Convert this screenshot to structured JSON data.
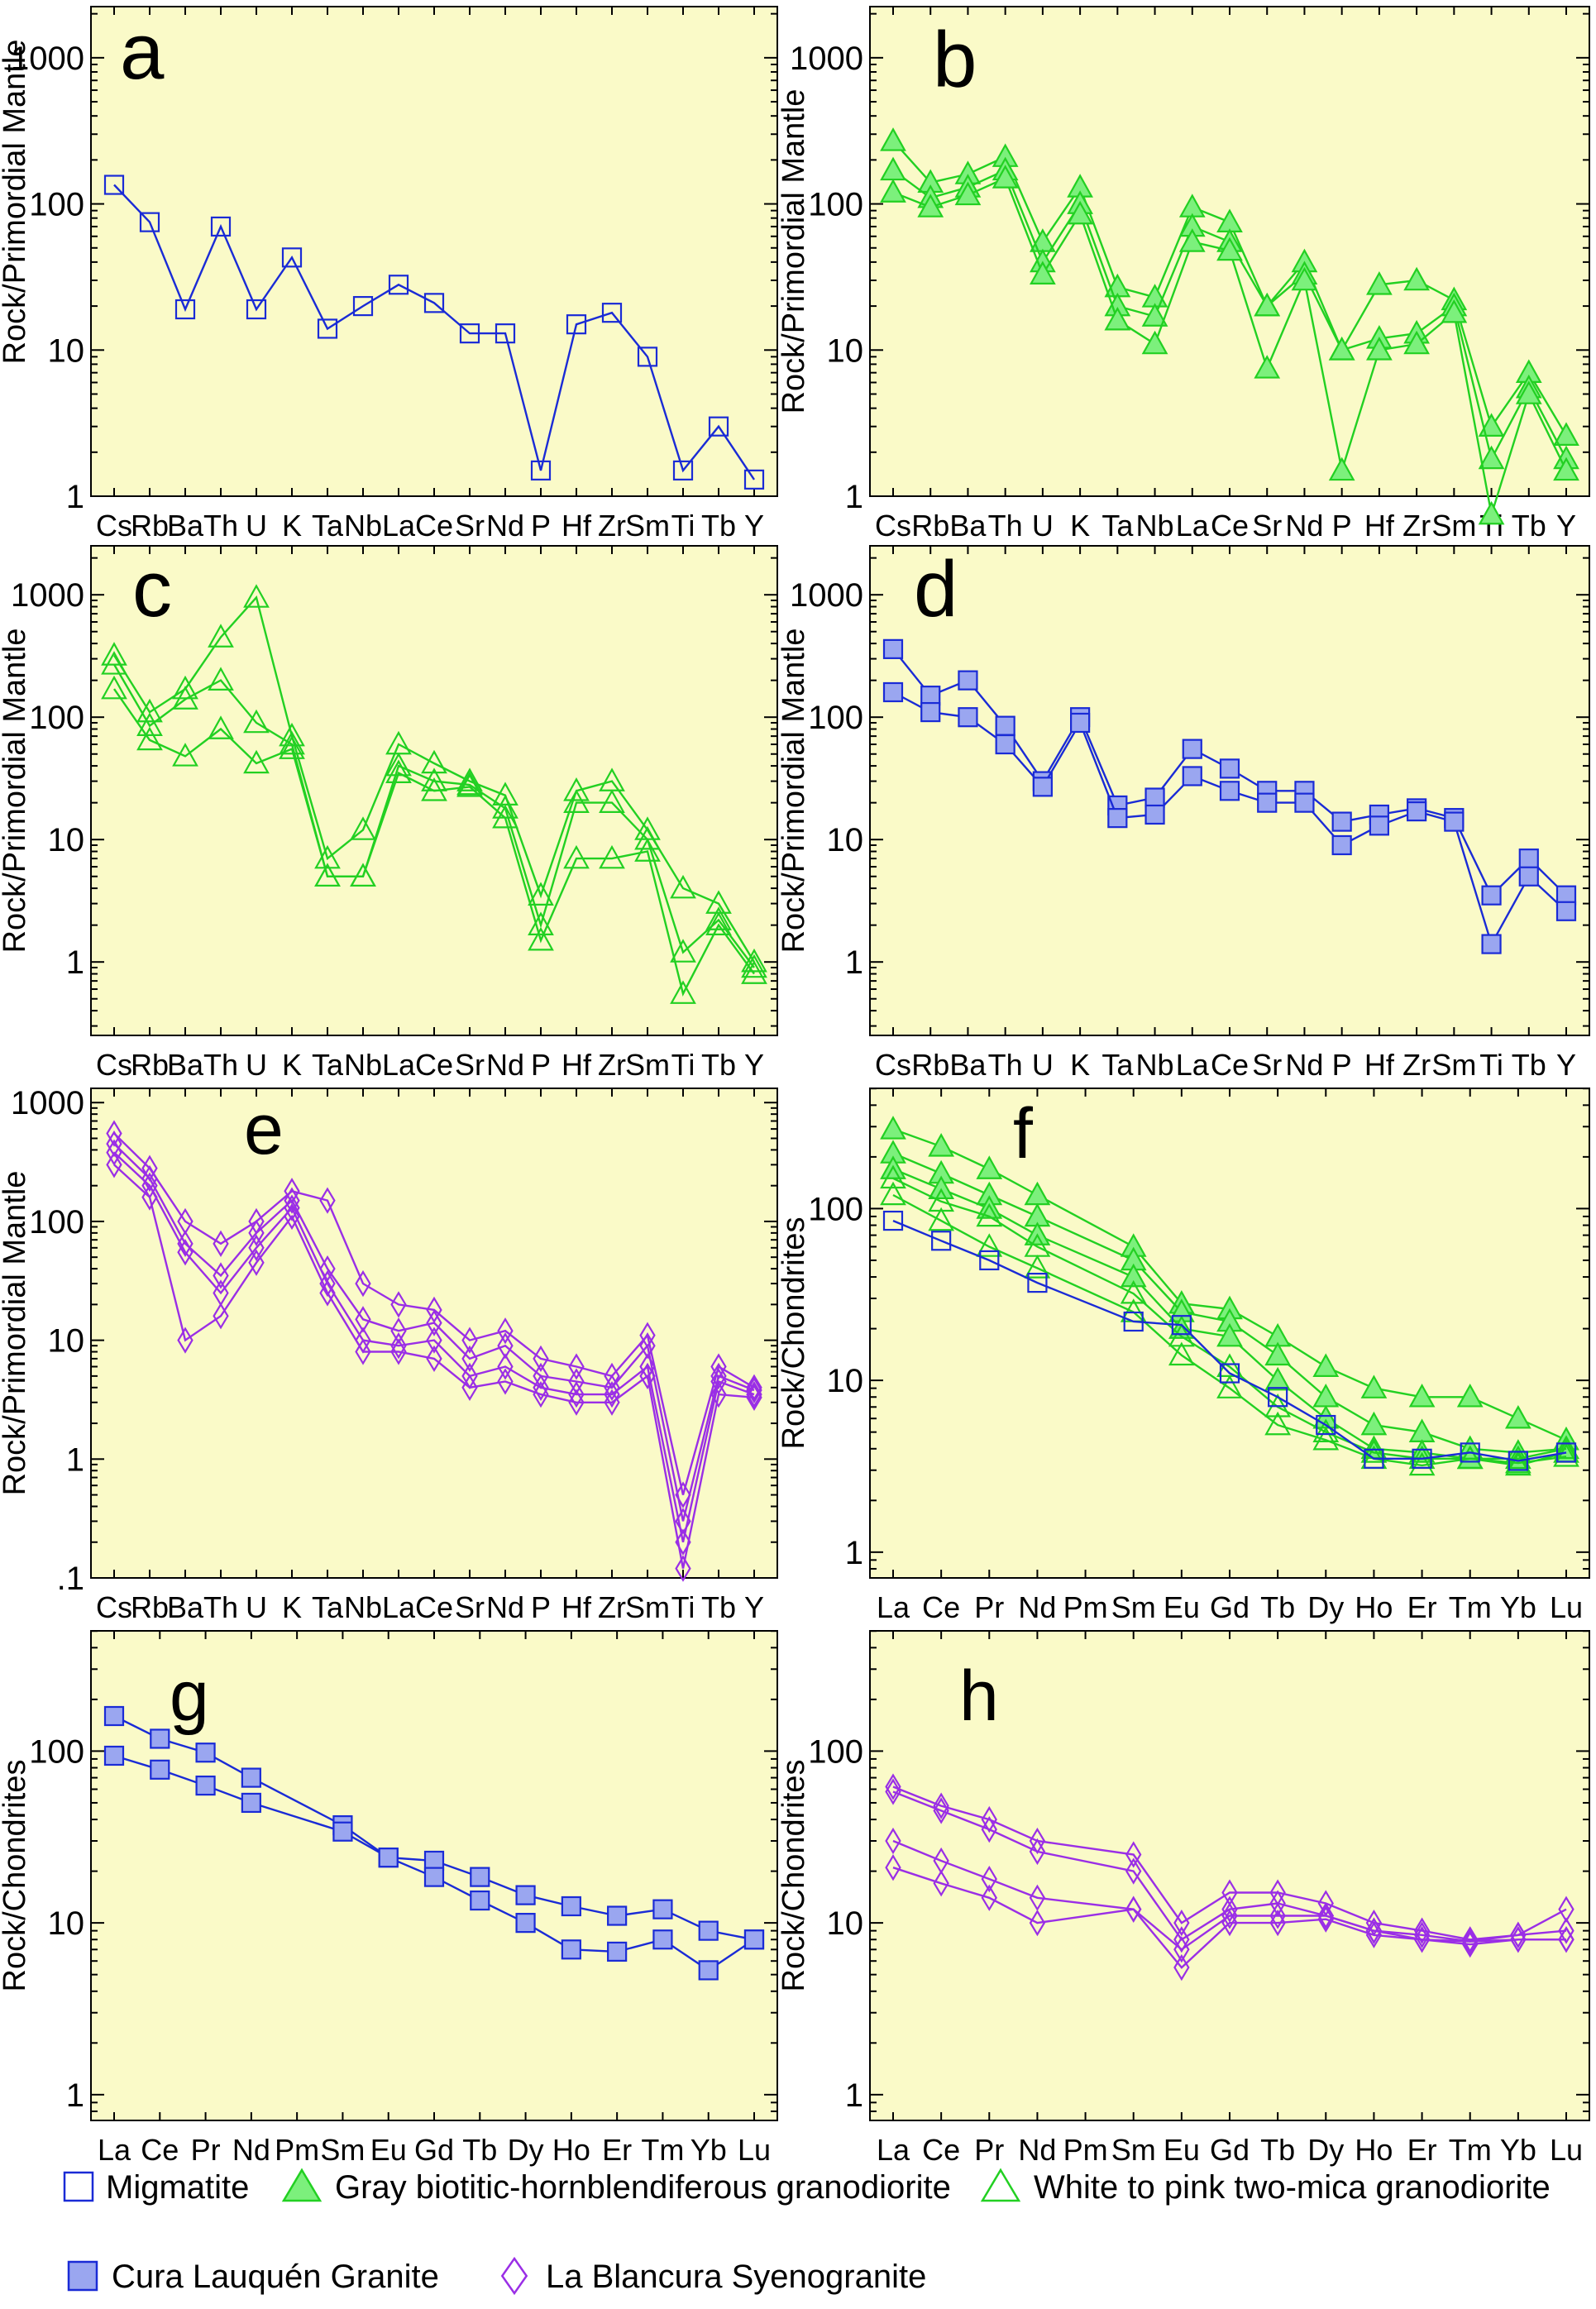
{
  "colors": {
    "background": "#fafac8",
    "migmatite": "#1a2bd6",
    "cura_fill": "#9aa6f0",
    "green_line": "#22d022",
    "green_fill": "#7cf07c",
    "purple": "#9a2ee6"
  },
  "legend": [
    {
      "label": "Migmatite",
      "marker": "square-open",
      "color": "#1a2bd6"
    },
    {
      "label": "Gray biotitic-hornblendiferous granodiorite",
      "marker": "triangle-filled",
      "color": "#22d022"
    },
    {
      "label": "White to pink two-mica  granodiorite",
      "marker": "triangle-open",
      "color": "#22d022"
    },
    {
      "label": "Cura Lauquén Granite",
      "marker": "square-filled",
      "color": "#1a2bd6"
    },
    {
      "label": "La Blancura Syenogranite",
      "marker": "diamond-open",
      "color": "#9a2ee6"
    }
  ],
  "chart_data": [
    {
      "panel": "a",
      "type": "line",
      "scale": "log",
      "ylabel": "Rock/Primordial Mantle",
      "ytick_labels": [
        "1000",
        "100",
        "10",
        "1"
      ],
      "categories": [
        "Cs",
        "Rb",
        "Ba",
        "Th",
        "U",
        "K",
        "Ta",
        "Nb",
        "La",
        "Ce",
        "Sr",
        "Nd",
        "P",
        "Hf",
        "Zr",
        "Sm",
        "Ti",
        "Tb",
        "Y"
      ],
      "series": [
        {
          "marker": "square-open",
          "color": "#1a2bd6",
          "values": [
            135,
            75,
            19,
            70,
            19,
            43,
            14,
            20,
            28,
            21,
            13,
            13,
            1.5,
            15,
            18,
            9,
            1.5,
            3,
            1.3
          ]
        }
      ]
    },
    {
      "panel": "b",
      "type": "line",
      "scale": "log",
      "ylabel": "Rock/Primordial Mantle",
      "ytick_labels": [
        "1000",
        "100",
        "10",
        "1"
      ],
      "categories": [
        "Cs",
        "Rb",
        "Ba",
        "Th",
        "U",
        "K",
        "Ta",
        "Nb",
        "La",
        "Ce",
        "Sr",
        "Nd",
        "P",
        "Hf",
        "Zr",
        "Sm",
        "Ti",
        "Tb",
        "Y"
      ],
      "series": [
        {
          "marker": "triangle-filled",
          "color": "#22d022",
          "values": [
            270,
            140,
            160,
            210,
            55,
            130,
            27,
            23,
            95,
            75,
            20,
            40,
            10,
            28,
            30,
            22,
            3,
            7,
            2.6
          ]
        },
        {
          "marker": "triangle-filled",
          "color": "#22d022",
          "values": [
            170,
            110,
            130,
            170,
            40,
            100,
            20,
            17,
            70,
            55,
            20,
            33,
            10,
            12,
            13,
            20,
            1.8,
            5.5,
            1.8
          ]
        },
        {
          "marker": "triangle-filled",
          "color": "#22d022",
          "values": [
            120,
            95,
            115,
            150,
            33,
            85,
            16,
            11,
            55,
            48,
            7.5,
            30,
            1.5,
            10,
            11,
            18,
            0.75,
            5,
            1.5
          ]
        }
      ]
    },
    {
      "panel": "c",
      "type": "line",
      "scale": "log",
      "ylabel": "Rock/Primordial Mantle",
      "ytick_labels": [
        "1000",
        "100",
        "10",
        "1"
      ],
      "categories": [
        "Cs",
        "Rb",
        "Ba",
        "Th",
        "U",
        "K",
        "Ta",
        "Nb",
        "La",
        "Ce",
        "Sr",
        "Nd",
        "P",
        "Hf",
        "Zr",
        "Sm",
        "Ti",
        "Tb",
        "Y"
      ],
      "series": [
        {
          "marker": "triangle-open",
          "color": "#22d022",
          "values": [
            320,
            110,
            170,
            450,
            950,
            70,
            7,
            12,
            60,
            42,
            30,
            23,
            3.5,
            25,
            30,
            12,
            4,
            3,
            1
          ]
        },
        {
          "marker": "triangle-open",
          "color": "#22d022",
          "values": [
            270,
            85,
            140,
            200,
            90,
            60,
            5,
            5,
            40,
            30,
            28,
            18,
            2,
            20,
            20,
            10,
            1.2,
            2.2,
            0.9
          ]
        },
        {
          "marker": "triangle-open",
          "color": "#22d022",
          "values": [
            170,
            65,
            48,
            80,
            42,
            55,
            5,
            5,
            35,
            25,
            27,
            15,
            1.5,
            7,
            7,
            8,
            0.55,
            2,
            0.8
          ]
        }
      ]
    },
    {
      "panel": "d",
      "type": "line",
      "scale": "log",
      "ylabel": "Rock/Primordial Mantle",
      "ytick_labels": [
        "1000",
        "100",
        "10",
        "1"
      ],
      "categories": [
        "Cs",
        "Rb",
        "Ba",
        "Th",
        "U",
        "K",
        "Ta",
        "Nb",
        "La",
        "Ce",
        "Sr",
        "Nd",
        "P",
        "Hf",
        "Zr",
        "Sm",
        "Ti",
        "Tb",
        "Y"
      ],
      "series": [
        {
          "marker": "square-filled",
          "color": "#1a2bd6",
          "values": [
            360,
            150,
            200,
            85,
            30,
            100,
            19,
            22,
            55,
            38,
            25,
            25,
            14,
            16,
            18,
            15,
            3.5,
            7,
            3.5
          ]
        },
        {
          "marker": "square-filled",
          "color": "#1a2bd6",
          "values": [
            160,
            110,
            100,
            60,
            27,
            90,
            15,
            16,
            33,
            25,
            20,
            20,
            9,
            13,
            17,
            14,
            1.4,
            5,
            2.6
          ]
        }
      ]
    },
    {
      "panel": "e",
      "type": "line",
      "scale": "log",
      "ylabel": "Rock/Primordial Mantle",
      "ytick_labels": [
        "1000",
        "100",
        "10",
        "1",
        ".1"
      ],
      "categories": [
        "Cs",
        "Rb",
        "Ba",
        "Th",
        "U",
        "K",
        "Ta",
        "Nb",
        "La",
        "Ce",
        "Sr",
        "Nd",
        "P",
        "Hf",
        "Zr",
        "Sm",
        "Ti",
        "Tb",
        "Y"
      ],
      "series": [
        {
          "marker": "diamond-open",
          "color": "#9a2ee6",
          "values": [
            550,
            280,
            100,
            65,
            100,
            180,
            150,
            30,
            20,
            18,
            10,
            12,
            7,
            6,
            5,
            11,
            0.5,
            6,
            4
          ]
        },
        {
          "marker": "diamond-open",
          "color": "#9a2ee6",
          "values": [
            450,
            230,
            65,
            35,
            80,
            150,
            40,
            15,
            12,
            14,
            7,
            9,
            5,
            4.5,
            4,
            9,
            0.3,
            5,
            3.8
          ]
        },
        {
          "marker": "diamond-open",
          "color": "#9a2ee6",
          "values": [
            380,
            200,
            55,
            25,
            60,
            130,
            30,
            10,
            9,
            10,
            5,
            6,
            4,
            3.5,
            3.5,
            6,
            0.2,
            4.5,
            3.5
          ]
        },
        {
          "marker": "diamond-open",
          "color": "#9a2ee6",
          "values": [
            300,
            160,
            10,
            16,
            45,
            110,
            25,
            8,
            8,
            7,
            4,
            4.5,
            3.5,
            3,
            3,
            5,
            0.12,
            3.5,
            3.3
          ]
        }
      ]
    },
    {
      "panel": "f",
      "type": "line",
      "scale": "log",
      "ylabel": "Rock/Chondrites",
      "ytick_labels": [
        "100",
        "10",
        "1"
      ],
      "categories": [
        "La",
        "Ce",
        "Pr",
        "Nd",
        "Pm",
        "Sm",
        "Eu",
        "Gd",
        "Tb",
        "Dy",
        "Ho",
        "Er",
        "Tm",
        "Yb",
        "Lu"
      ],
      "series": [
        {
          "marker": "triangle-filled",
          "color": "#22d022",
          "values": [
            290,
            230,
            170,
            120,
            null,
            60,
            28,
            26,
            18,
            12,
            9,
            8,
            8,
            6,
            4.5
          ]
        },
        {
          "marker": "triangle-filled",
          "color": "#22d022",
          "values": [
            210,
            160,
            120,
            90,
            null,
            50,
            25,
            22,
            14,
            8,
            5.5,
            5,
            4,
            3.8,
            4
          ]
        },
        {
          "marker": "triangle-filled",
          "color": "#22d022",
          "values": [
            170,
            130,
            100,
            70,
            null,
            40,
            20,
            18,
            10,
            6,
            4,
            3.8,
            3.5,
            3.2,
            3.8
          ]
        },
        {
          "marker": "triangle-open",
          "color": "#22d022",
          "values": [
            150,
            110,
            90,
            60,
            null,
            32,
            18,
            12,
            7,
            5,
            3.8,
            3.5,
            3.5,
            3.3,
            3.6
          ]
        },
        {
          "marker": "triangle-open",
          "color": "#22d022",
          "values": [
            120,
            85,
            60,
            45,
            null,
            25,
            14,
            9,
            5.5,
            4.5,
            3.5,
            3.2,
            3.5,
            3.5,
            4
          ]
        },
        {
          "marker": "square-open",
          "color": "#1a2bd6",
          "values": [
            85,
            65,
            50,
            37,
            null,
            22,
            21,
            11,
            8,
            5.5,
            3.5,
            3.5,
            3.8,
            3.4,
            3.8
          ]
        }
      ]
    },
    {
      "panel": "g",
      "type": "line",
      "scale": "log",
      "ylabel": "Rock/Chondrites",
      "ytick_labels": [
        "100",
        "10",
        "1"
      ],
      "categories": [
        "La",
        "Ce",
        "Pr",
        "Nd",
        "Pm",
        "Sm",
        "Eu",
        "Gd",
        "Tb",
        "Dy",
        "Ho",
        "Er",
        "Tm",
        "Yb",
        "Lu"
      ],
      "series": [
        {
          "marker": "square-filled",
          "color": "#1a2bd6",
          "values": [
            160,
            118,
            98,
            70,
            null,
            37,
            24,
            23,
            18.5,
            14.5,
            12.5,
            11,
            12,
            9,
            8
          ]
        },
        {
          "marker": "square-filled",
          "color": "#1a2bd6",
          "values": [
            94,
            78,
            63,
            50,
            null,
            34,
            24,
            18.5,
            13.5,
            10,
            7,
            6.8,
            8,
            5.3,
            8
          ]
        }
      ]
    },
    {
      "panel": "h",
      "type": "line",
      "scale": "log",
      "ylabel": "Rock/Chondrites",
      "ytick_labels": [
        "100",
        "10",
        "1"
      ],
      "categories": [
        "La",
        "Ce",
        "Pr",
        "Nd",
        "Pm",
        "Sm",
        "Eu",
        "Gd",
        "Tb",
        "Dy",
        "Ho",
        "Er",
        "Tm",
        "Yb",
        "Lu"
      ],
      "series": [
        {
          "marker": "diamond-open",
          "color": "#9a2ee6",
          "values": [
            62,
            48,
            40,
            30,
            null,
            25,
            10,
            15,
            15,
            13,
            10,
            9,
            8,
            8.5,
            12
          ]
        },
        {
          "marker": "diamond-open",
          "color": "#9a2ee6",
          "values": [
            58,
            45,
            35,
            26,
            null,
            20,
            8,
            12,
            13,
            11,
            9,
            8,
            7.8,
            8,
            8
          ]
        },
        {
          "marker": "diamond-open",
          "color": "#9a2ee6",
          "values": [
            30,
            23,
            18,
            14,
            null,
            12,
            7,
            11,
            11,
            11,
            9,
            8.5,
            7.8,
            8.5,
            9
          ]
        },
        {
          "marker": "diamond-open",
          "color": "#9a2ee6",
          "values": [
            21,
            17,
            14,
            10,
            null,
            12,
            5.5,
            10,
            10,
            10.5,
            8.5,
            8,
            7.5,
            8,
            8
          ]
        }
      ]
    }
  ]
}
